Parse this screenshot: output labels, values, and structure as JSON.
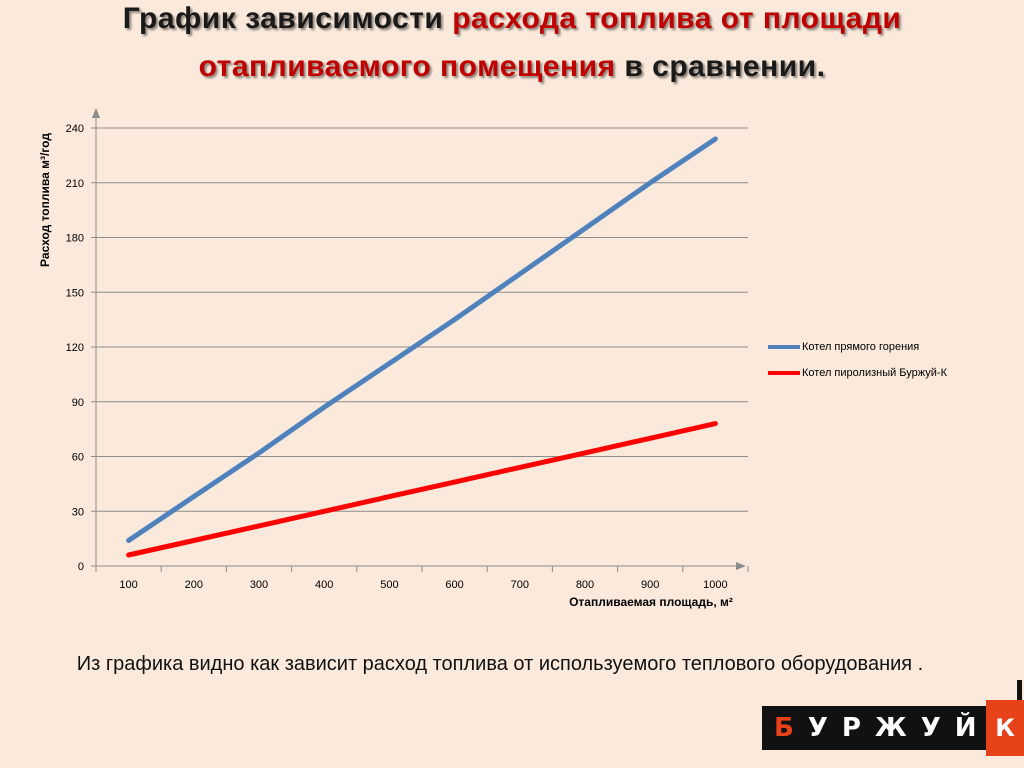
{
  "title": {
    "line1_part1": "График зависимости ",
    "line1_part2": "расхода топлива от площади",
    "line2_part1": "отапливаемого помещения",
    "line2_part2": " в сравнении."
  },
  "caption": "Из графика видно как зависит расход топлива от используемого теплового оборудования .",
  "logo": {
    "first_letter": "Б",
    "rest": "УРЖУЙ",
    "suffix": "К"
  },
  "chart_data": {
    "type": "line",
    "title": "",
    "xlabel": "Отапливаемая площадь, м²",
    "ylabel": "Расход топлива м³/год",
    "categories": [
      "100",
      "200",
      "300",
      "400",
      "500",
      "600",
      "700",
      "800",
      "900",
      "1000"
    ],
    "x": [
      100,
      200,
      300,
      400,
      500,
      600,
      700,
      800,
      900,
      1000
    ],
    "ylim": [
      0,
      240
    ],
    "yticks": [
      0,
      30,
      60,
      90,
      120,
      150,
      180,
      210,
      240
    ],
    "grid": true,
    "legend_position": "right",
    "series": [
      {
        "name": "Котел прямого горения",
        "color": "#4f81bd",
        "values": [
          14,
          38,
          62,
          87,
          111,
          135,
          160,
          185,
          210,
          234
        ]
      },
      {
        "name": "Котел пиролизный Буржуй-К",
        "color": "#ff0000",
        "values": [
          6,
          14,
          22,
          30,
          38,
          46,
          54,
          62,
          70,
          78
        ]
      }
    ]
  }
}
